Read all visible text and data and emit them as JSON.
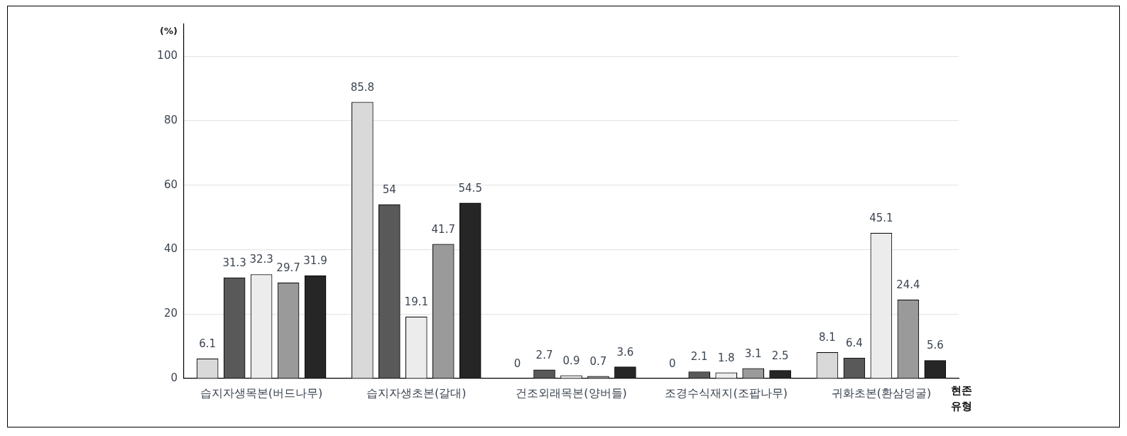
{
  "chart_data": {
    "type": "bar",
    "ylabel": "(%)",
    "xlabel": "현존 유형",
    "categories": [
      "습지자생목본(버드나무)",
      "습지자생초본(갈대)",
      "건조외래목본(양버들)",
      "조경수식재지(조팝나무)",
      "귀화초본(환삼덩굴)"
    ],
    "series": [
      {
        "color": "#d9d9d9",
        "values": [
          6.1,
          85.8,
          0,
          0,
          8.1
        ]
      },
      {
        "color": "#595959",
        "values": [
          31.3,
          54,
          2.7,
          2.1,
          6.4
        ]
      },
      {
        "color": "#ececec",
        "values": [
          32.3,
          19.1,
          0.9,
          1.8,
          45.1
        ]
      },
      {
        "color": "#9a9a9a",
        "values": [
          29.7,
          41.7,
          0.7,
          3.1,
          24.4
        ]
      },
      {
        "color": "#262626",
        "values": [
          31.9,
          54.5,
          3.6,
          2.5,
          5.6
        ]
      }
    ],
    "ylim": [
      0,
      110
    ],
    "yticks": [
      0,
      20,
      40,
      60,
      80,
      100
    ],
    "grid": "y",
    "legend": false,
    "data_labels": true
  }
}
